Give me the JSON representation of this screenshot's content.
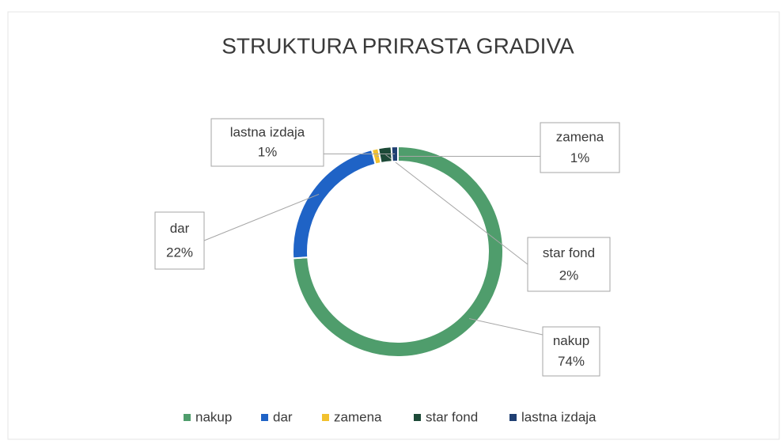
{
  "chart_data": {
    "type": "donut",
    "title": "STRUKTURA PRIRASTA GRADIVA",
    "categories": [
      "nakup",
      "dar",
      "zamena",
      "star fond",
      "lastna izdaja"
    ],
    "values": [
      74,
      22,
      1,
      2,
      1
    ],
    "value_labels": [
      "74%",
      "22%",
      "1%",
      "2%",
      "1%"
    ],
    "colors": [
      "#4f9d6c",
      "#1f63c6",
      "#f2c12e",
      "#1d4a38",
      "#1f3f72"
    ],
    "legend": "bottom"
  }
}
